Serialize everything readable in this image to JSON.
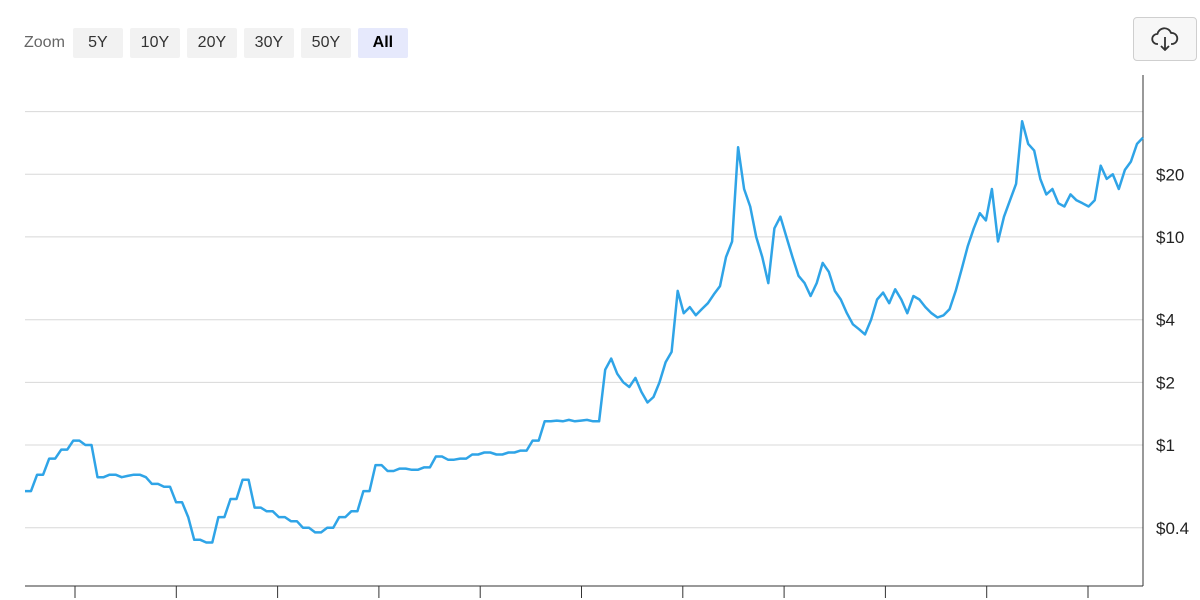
{
  "toolbar": {
    "zoom_label": "Zoom",
    "buttons": [
      "5Y",
      "10Y",
      "20Y",
      "30Y",
      "50Y",
      "All"
    ],
    "active": "All",
    "export_icon": "cloud-download-icon"
  },
  "colors": {
    "line": "#2fa4e7",
    "grid": "#d8d8d8",
    "axis": "#333333",
    "active_button": "#e6e9fc"
  },
  "chart_data": {
    "type": "line",
    "scale": "log",
    "title": "",
    "xlabel": "",
    "ylabel": "",
    "ylim": [
      0.21,
      60
    ],
    "y_ticks": [
      {
        "value": 0.4,
        "label": "$0.4"
      },
      {
        "value": 1,
        "label": "$1"
      },
      {
        "value": 2,
        "label": "$2"
      },
      {
        "value": 4,
        "label": "$4"
      },
      {
        "value": 10,
        "label": "$10"
      },
      {
        "value": 20,
        "label": "$20"
      },
      {
        "value": 40,
        "label": ""
      }
    ],
    "x_tick_count": 11,
    "grid": true,
    "series": [
      {
        "values": [
          0.6,
          0.6,
          0.72,
          0.72,
          0.86,
          0.86,
          0.95,
          0.95,
          1.05,
          1.05,
          1.0,
          1.0,
          0.7,
          0.7,
          0.72,
          0.72,
          0.7,
          0.71,
          0.72,
          0.72,
          0.7,
          0.65,
          0.65,
          0.63,
          0.63,
          0.53,
          0.53,
          0.45,
          0.35,
          0.35,
          0.34,
          0.34,
          0.45,
          0.45,
          0.55,
          0.55,
          0.68,
          0.68,
          0.5,
          0.5,
          0.48,
          0.48,
          0.45,
          0.45,
          0.43,
          0.43,
          0.4,
          0.4,
          0.38,
          0.38,
          0.4,
          0.4,
          0.45,
          0.45,
          0.48,
          0.48,
          0.6,
          0.6,
          0.8,
          0.8,
          0.75,
          0.75,
          0.77,
          0.77,
          0.76,
          0.76,
          0.78,
          0.78,
          0.88,
          0.88,
          0.85,
          0.85,
          0.86,
          0.86,
          0.9,
          0.9,
          0.92,
          0.92,
          0.9,
          0.9,
          0.92,
          0.92,
          0.94,
          0.94,
          1.05,
          1.05,
          1.3,
          1.3,
          1.31,
          1.3,
          1.32,
          1.3,
          1.31,
          1.32,
          1.3,
          1.3,
          2.3,
          2.6,
          2.2,
          2.0,
          1.9,
          2.1,
          1.8,
          1.6,
          1.7,
          2.0,
          2.5,
          2.8,
          5.5,
          4.3,
          4.6,
          4.2,
          4.5,
          4.8,
          5.3,
          5.8,
          8.0,
          9.5,
          27.0,
          17.0,
          14.0,
          10.0,
          8.0,
          6.0,
          11.0,
          12.5,
          10.0,
          8.0,
          6.5,
          6.0,
          5.2,
          6.0,
          7.5,
          6.8,
          5.5,
          5.0,
          4.3,
          3.8,
          3.6,
          3.4,
          4.0,
          5.0,
          5.4,
          4.8,
          5.6,
          5.0,
          4.3,
          5.2,
          5.0,
          4.6,
          4.3,
          4.1,
          4.2,
          4.5,
          5.5,
          7.0,
          9.0,
          11.0,
          13.0,
          12.0,
          17.0,
          9.5,
          12.5,
          15.0,
          18.0,
          36.0,
          28.0,
          26.0,
          19.0,
          16.0,
          17.0,
          14.5,
          14.0,
          16.0,
          15.0,
          14.5,
          14.0,
          15.0,
          22.0,
          19.0,
          20.0,
          17.0,
          21.0,
          23.0,
          28.0,
          30.0
        ]
      }
    ]
  }
}
